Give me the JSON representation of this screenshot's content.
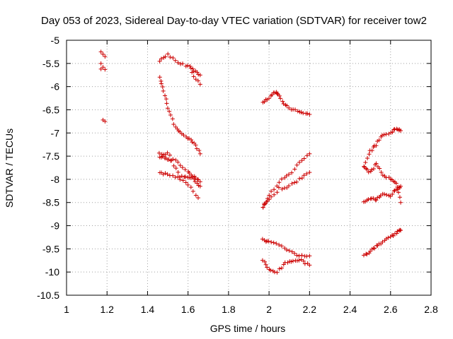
{
  "chart_data": {
    "type": "scatter",
    "title": "Day 053 of 2023, Sidereal Day-to-day VTEC variation (SDTVAR) for receiver tow2",
    "xlabel": "GPS time / hours",
    "ylabel": "SDTVAR / TECUs",
    "xlim": [
      1.0,
      2.8
    ],
    "ylim": [
      -10.5,
      -5.0
    ],
    "x_ticks": [
      "1",
      "1.2",
      "1.4",
      "1.6",
      "1.8",
      "2",
      "2.2",
      "2.4",
      "2.6",
      "2.8"
    ],
    "y_ticks": [
      "-5",
      "-5.5",
      "-6",
      "-6.5",
      "-7",
      "-7.5",
      "-8",
      "-8.5",
      "-9",
      "-9.5",
      "-10",
      "-10.5"
    ],
    "grid": true,
    "grid_style": "dotted",
    "marker": "+",
    "color": "#cc0000",
    "segments": [
      {
        "x": [
          1.17,
          1.18,
          1.19,
          1.17,
          1.18,
          1.19,
          1.17,
          1.18,
          1.19
        ],
        "y": [
          -5.25,
          -5.3,
          -5.35,
          -5.5,
          -5.58,
          -5.63,
          -5.62,
          -6.72,
          -6.75
        ]
      },
      {
        "x": [
          1.46,
          1.5,
          1.55,
          1.6,
          1.63,
          1.66
        ],
        "y": [
          -5.45,
          -5.3,
          -5.5,
          -5.55,
          -5.65,
          -5.75
        ]
      },
      {
        "x": [
          1.62,
          1.66
        ],
        "y": [
          -5.7,
          -5.95
        ]
      },
      {
        "x": [
          1.46,
          1.48,
          1.5,
          1.53,
          1.56,
          1.6,
          1.63,
          1.66
        ],
        "y": [
          -5.8,
          -6.1,
          -6.45,
          -6.8,
          -7.0,
          -7.1,
          -7.2,
          -7.45
        ]
      },
      {
        "x": [
          1.46,
          1.5,
          1.55,
          1.6,
          1.63,
          1.66
        ],
        "y": [
          -7.45,
          -7.45,
          -7.65,
          -7.85,
          -8.0,
          -8.15
        ]
      },
      {
        "x": [
          1.46,
          1.5,
          1.55,
          1.6,
          1.65
        ],
        "y": [
          -7.85,
          -7.9,
          -7.95,
          -8.1,
          -8.4
        ]
      },
      {
        "x": [
          1.46,
          1.49,
          1.52,
          1.56,
          1.6,
          1.63,
          1.66
        ],
        "y": [
          -7.5,
          -7.55,
          -7.6,
          -7.95,
          -7.95,
          -7.95,
          -8.05
        ]
      },
      {
        "x": [
          1.97,
          2.0,
          2.03,
          2.05,
          2.08,
          2.12,
          2.16,
          2.2
        ],
        "y": [
          -6.35,
          -6.25,
          -6.12,
          -6.2,
          -6.4,
          -6.5,
          -6.55,
          -6.6
        ]
      },
      {
        "x": [
          1.97,
          2.0,
          2.05,
          2.1,
          2.15,
          2.2
        ],
        "y": [
          -8.6,
          -8.35,
          -8.05,
          -7.9,
          -7.65,
          -7.45
        ]
      },
      {
        "x": [
          1.97,
          2.0,
          2.05,
          2.1,
          2.15,
          2.2
        ],
        "y": [
          -8.6,
          -8.45,
          -8.2,
          -8.15,
          -8.0,
          -7.85
        ]
      },
      {
        "x": [
          1.97,
          2.0,
          2.05,
          2.1,
          2.15,
          2.2
        ],
        "y": [
          -9.3,
          -9.35,
          -9.4,
          -9.55,
          -9.65,
          -9.65
        ]
      },
      {
        "x": [
          1.97,
          2.0,
          2.04,
          2.08,
          2.12,
          2.16,
          2.2
        ],
        "y": [
          -9.75,
          -9.95,
          -10.0,
          -9.8,
          -9.75,
          -9.75,
          -9.85
        ]
      },
      {
        "x": [
          2.47,
          2.5,
          2.53,
          2.56,
          2.6,
          2.63,
          2.65
        ],
        "y": [
          -7.7,
          -7.4,
          -7.25,
          -7.05,
          -7.0,
          -6.9,
          -6.95
        ]
      },
      {
        "x": [
          2.47,
          2.5,
          2.53,
          2.56,
          2.6,
          2.63,
          2.65
        ],
        "y": [
          -7.75,
          -7.85,
          -7.65,
          -7.9,
          -8.0,
          -8.1,
          -8.5
        ]
      },
      {
        "x": [
          2.47,
          2.5,
          2.53,
          2.56,
          2.6,
          2.63,
          2.65
        ],
        "y": [
          -8.5,
          -8.4,
          -8.45,
          -8.3,
          -8.35,
          -8.2,
          -8.15
        ]
      },
      {
        "x": [
          2.47,
          2.5,
          2.53,
          2.56,
          2.6,
          2.63,
          2.65
        ],
        "y": [
          -9.65,
          -9.55,
          -9.45,
          -9.35,
          -9.25,
          -9.15,
          -9.1
        ]
      }
    ]
  }
}
